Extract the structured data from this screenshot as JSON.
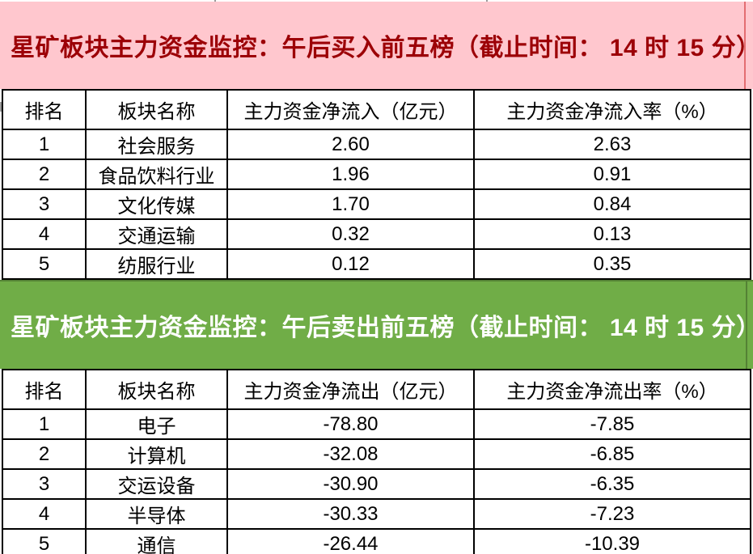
{
  "page": {
    "background": "#ffffff",
    "border_color": "#000000"
  },
  "chart_data": [
    {
      "type": "table",
      "title": "星矿板块主力资金监控：午后买入前五榜（截止时间： 14 时 15 分）",
      "theme": {
        "band_bg": "#ffc7ce",
        "band_text": "#9c0006"
      },
      "columns": [
        "排名",
        "板块名称",
        "主力资金净流入（亿元）",
        "主力资金净流入率（%）"
      ],
      "rows": [
        [
          "1",
          "社会服务",
          "2.60",
          "2.63"
        ],
        [
          "2",
          "食品饮料行业",
          "1.96",
          "0.91"
        ],
        [
          "3",
          "文化传媒",
          "1.70",
          "0.84"
        ],
        [
          "4",
          "交通运输",
          "0.32",
          "0.13"
        ],
        [
          "5",
          "纺服行业",
          "0.12",
          "0.35"
        ]
      ]
    },
    {
      "type": "table",
      "title": "星矿板块主力资金监控：午后卖出前五榜（截止时间： 14 时 15 分）",
      "theme": {
        "band_bg": "#70ad47",
        "band_text": "#ffffff"
      },
      "columns": [
        "排名",
        "板块名称",
        "主力资金净流出（亿元）",
        "主力资金净流出率（%）"
      ],
      "rows": [
        [
          "1",
          "电子",
          "-78.80",
          "-7.85"
        ],
        [
          "2",
          "计算机",
          "-32.08",
          "-6.85"
        ],
        [
          "3",
          "交运设备",
          "-30.90",
          "-6.35"
        ],
        [
          "4",
          "半导体",
          "-30.33",
          "-7.23"
        ],
        [
          "5",
          "通信",
          "-26.44",
          "-10.39"
        ]
      ]
    }
  ]
}
